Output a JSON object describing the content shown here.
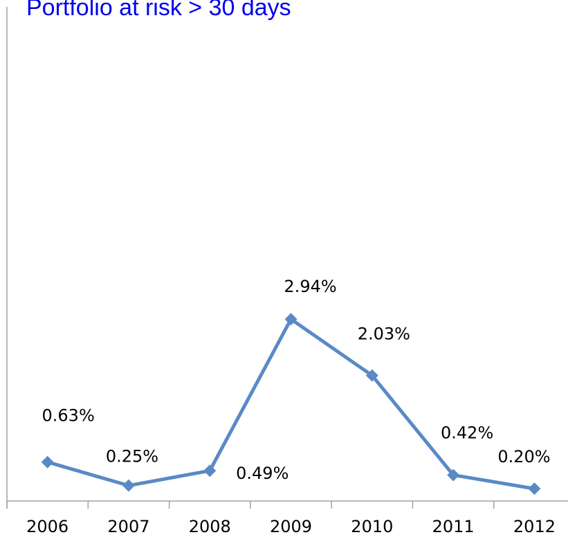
{
  "chart_data": {
    "type": "line",
    "title": "Portfolio at risk > 30 days",
    "categories": [
      "2006",
      "2007",
      "2008",
      "2009",
      "2010",
      "2011",
      "2012"
    ],
    "series": [
      {
        "name": "Portfolio at risk > 30 days",
        "color": "#5a8ac6",
        "values": [
          0.63,
          0.25,
          0.49,
          2.94,
          2.03,
          0.42,
          0.2
        ],
        "value_labels": [
          "0.63%",
          "0.25%",
          "0.49%",
          "2.94%",
          "2.03%",
          "0.42%",
          "0.20%"
        ]
      }
    ],
    "ylim": [
      0,
      8
    ]
  }
}
